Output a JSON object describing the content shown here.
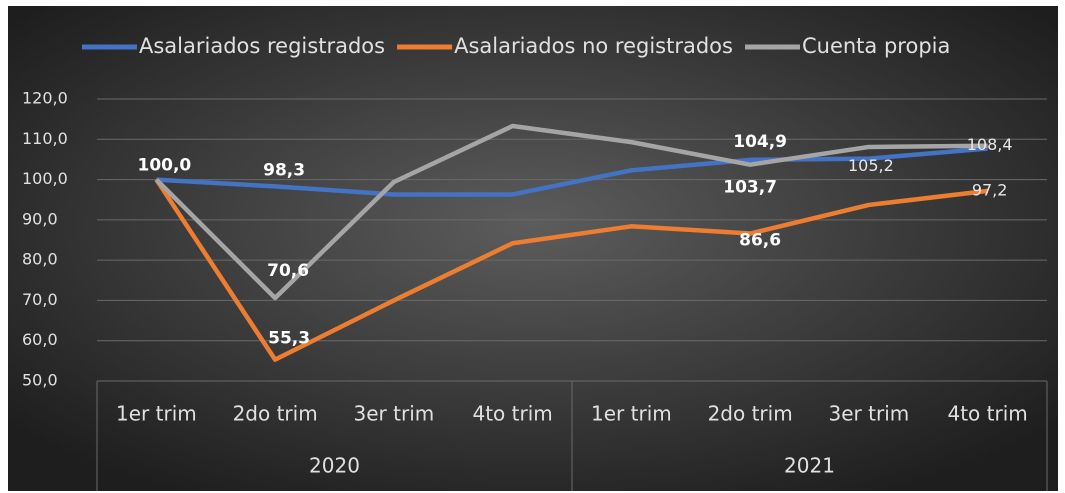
{
  "chart_data": {
    "type": "line",
    "categories": [
      "1er trim",
      "2do trim",
      "3er trim",
      "4to trim",
      "1er trim",
      "2do trim",
      "3er trim",
      "4to trim"
    ],
    "groups": [
      {
        "label": "2020",
        "span": 4
      },
      {
        "label": "2021",
        "span": 4
      }
    ],
    "series": [
      {
        "name": "Asalariados registrados",
        "color": "#4472c4",
        "values": [
          100.0,
          98.3,
          96.3,
          96.3,
          102.3,
          104.9,
          105.2,
          107.7
        ],
        "value_labels": [
          "100,0",
          "98,3",
          null,
          null,
          null,
          "104,9",
          "105,2",
          null
        ]
      },
      {
        "name": "Asalariados no registrados",
        "color": "#ed7d31",
        "values": [
          100.0,
          55.3,
          70.0,
          84.2,
          88.4,
          86.6,
          93.7,
          97.2
        ],
        "value_labels": [
          null,
          "55,3",
          null,
          null,
          null,
          "86,6",
          null,
          "97,2"
        ]
      },
      {
        "name": "Cuenta propia",
        "color": "#a5a5a5",
        "values": [
          100.0,
          70.6,
          99.4,
          113.3,
          109.3,
          103.7,
          108.1,
          108.4
        ],
        "value_labels": [
          null,
          "70,6",
          null,
          null,
          null,
          "103,7",
          null,
          "108,4"
        ]
      }
    ],
    "ylim": [
      50,
      120
    ],
    "yticks": [
      {
        "value": 50,
        "label": "50,0"
      },
      {
        "value": 60,
        "label": "60,0"
      },
      {
        "value": 70,
        "label": "70,0"
      },
      {
        "value": 80,
        "label": "80,0"
      },
      {
        "value": 90,
        "label": "90,0"
      },
      {
        "value": 100,
        "label": "100,0"
      },
      {
        "value": 110,
        "label": "110,0"
      },
      {
        "value": 120,
        "label": "120,0"
      }
    ],
    "grid": true,
    "legend": "top"
  }
}
